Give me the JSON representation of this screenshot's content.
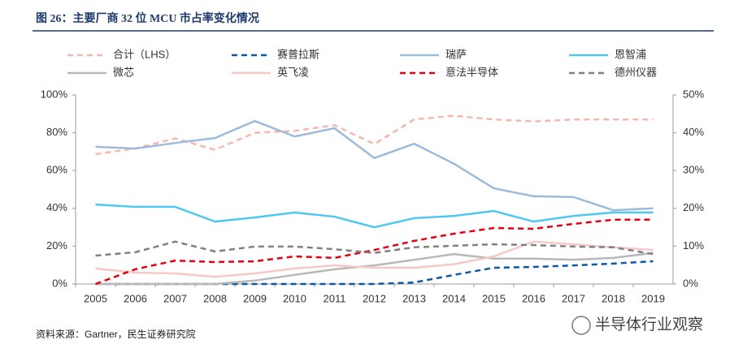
{
  "chart_data": {
    "type": "line",
    "title": "图 26：主要厂商 32 位 MCU 市占率变化情况",
    "source": "资料来源：Gartner，民生证券研究院",
    "watermark": "半导体行业观察",
    "categories": [
      "2005",
      "2006",
      "2007",
      "2008",
      "2009",
      "2010",
      "2011",
      "2012",
      "2013",
      "2014",
      "2015",
      "2016",
      "2017",
      "2018",
      "2019"
    ],
    "ylim": [
      0,
      100
    ],
    "yticks": [
      {
        "value": 0,
        "label": "0%"
      },
      {
        "value": 20,
        "label": "20%"
      },
      {
        "value": 40,
        "label": "40%"
      },
      {
        "value": 60,
        "label": "60%"
      },
      {
        "value": 80,
        "label": "80%"
      },
      {
        "value": 100,
        "label": "100%"
      }
    ],
    "y2lim": [
      0,
      50
    ],
    "y2ticks": [
      {
        "value": 0,
        "label": "0%"
      },
      {
        "value": 10,
        "label": "10%"
      },
      {
        "value": 20,
        "label": "20%"
      },
      {
        "value": 30,
        "label": "30%"
      },
      {
        "value": 40,
        "label": "40%"
      },
      {
        "value": 50,
        "label": "50%"
      }
    ],
    "series": [
      {
        "name": "合计（LHS）",
        "color": "#f4b8b0",
        "dashed": true,
        "axis": "y",
        "values": [
          68.7,
          71.7,
          77,
          71,
          80,
          81,
          84,
          74,
          87,
          89,
          87,
          86,
          87,
          87,
          87
        ]
      },
      {
        "name": "赛普拉斯",
        "color": "#0a58a8",
        "dashed": true,
        "axis": "y2",
        "values": [
          0,
          0,
          0,
          0,
          0,
          0,
          0,
          0,
          0.4,
          2.4,
          4.3,
          4.5,
          4.9,
          5.4,
          6
        ]
      },
      {
        "name": "瑞萨",
        "color": "#9dbbd8",
        "dashed": false,
        "axis": "y2",
        "values": [
          36.3,
          35.8,
          37.3,
          38.6,
          43.1,
          39,
          41.2,
          33.3,
          37.1,
          31.8,
          25.3,
          23.2,
          23,
          19.5,
          20
        ]
      },
      {
        "name": "恩智浦",
        "color": "#4dc8f0",
        "dashed": false,
        "axis": "y2",
        "values": [
          21,
          20.4,
          20.4,
          16.5,
          17.6,
          18.9,
          17.8,
          15,
          17.4,
          18,
          19.3,
          16.5,
          18,
          18.9,
          18.9
        ]
      },
      {
        "name": "微芯",
        "color": "#b8b8b8",
        "dashed": false,
        "axis": "y2",
        "values": [
          0,
          0,
          0,
          0,
          0.9,
          2.4,
          3.9,
          4.9,
          6.4,
          7.9,
          6.7,
          6.7,
          6.4,
          6.9,
          8.2
        ]
      },
      {
        "name": "英飞凌",
        "color": "#f8c8c8",
        "dashed": false,
        "axis": "y2",
        "values": [
          4.1,
          3,
          2.8,
          1.9,
          2.8,
          4.1,
          4.9,
          4.3,
          4.3,
          5.2,
          7.3,
          11.2,
          10.5,
          9.7,
          9
        ]
      },
      {
        "name": "意法半导体",
        "color": "#e60012",
        "dashed": true,
        "axis": "y2",
        "values": [
          0,
          3.9,
          6.2,
          5.8,
          6,
          7.3,
          6.9,
          9,
          11.4,
          13.3,
          14.8,
          14.6,
          15.9,
          17,
          17
        ]
      },
      {
        "name": "德州仪器",
        "color": "#808080",
        "dashed": true,
        "axis": "y2",
        "values": [
          7.5,
          8.4,
          11.2,
          8.6,
          9.9,
          9.9,
          9.2,
          8.2,
          9.7,
          10.1,
          10.5,
          10.3,
          9.9,
          9.7,
          7.9
        ]
      }
    ]
  }
}
